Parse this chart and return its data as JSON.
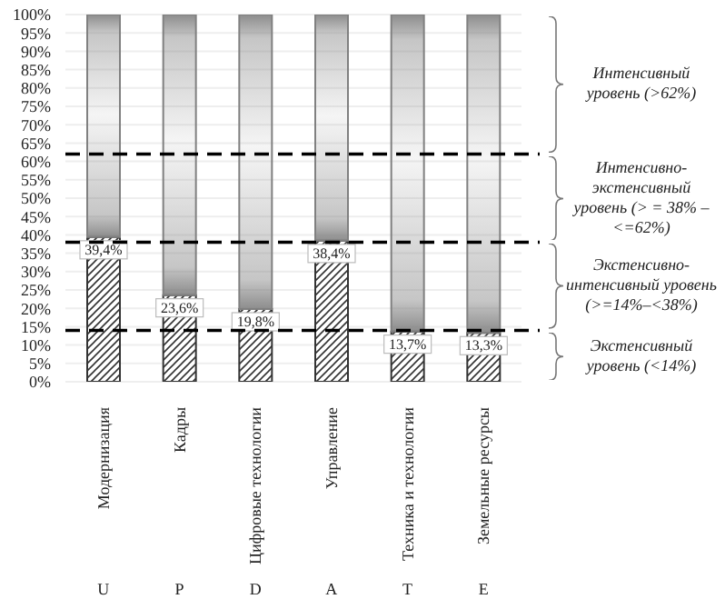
{
  "chart_data": {
    "type": "bar",
    "stacked": true,
    "categories": [
      "Модернизация",
      "Кадры",
      "Цифровые технологии",
      "Управление",
      "Техника и технологии",
      "Земельные ресурсы"
    ],
    "series": [
      {
        "color": "#333333",
        "values": [
          39.4,
          23.6,
          19.8,
          38.4,
          13.7,
          13.3
        ],
        "value_labels": [
          "39,4%",
          "23,6%",
          "19,8%",
          "38,4%",
          "13,7%",
          "13,3%"
        ]
      },
      {
        "color": "#808080",
        "values": [
          60.6,
          76.4,
          80.2,
          61.6,
          86.3,
          86.7
        ]
      }
    ],
    "ylim": [
      0,
      100
    ],
    "yticks": [
      {
        "value": 0,
        "label": "0%"
      },
      {
        "value": 5,
        "label": "5%"
      },
      {
        "value": 10,
        "label": "10%"
      },
      {
        "value": 15,
        "label": "15%"
      },
      {
        "value": 20,
        "label": "20%"
      },
      {
        "value": 25,
        "label": "25%"
      },
      {
        "value": 30,
        "label": "30%"
      },
      {
        "value": 35,
        "label": "35%"
      },
      {
        "value": 40,
        "label": "40%"
      },
      {
        "value": 45,
        "label": "45%"
      },
      {
        "value": 50,
        "label": "50%"
      },
      {
        "value": 55,
        "label": "55%"
      },
      {
        "value": 60,
        "label": "60%"
      },
      {
        "value": 65,
        "label": "65%"
      },
      {
        "value": 70,
        "label": "70%"
      },
      {
        "value": 75,
        "label": "75%"
      },
      {
        "value": 80,
        "label": "80%"
      },
      {
        "value": 85,
        "label": "85%"
      },
      {
        "value": 90,
        "label": "90%"
      },
      {
        "value": 95,
        "label": "95%"
      },
      {
        "value": 100,
        "label": "100%"
      }
    ],
    "grid": "y",
    "ref_lines": [
      {
        "axis": "y",
        "value": 62,
        "line_style": "dashed",
        "color": "#000000"
      },
      {
        "axis": "y",
        "value": 38,
        "line_style": "dashed",
        "color": "#000000"
      },
      {
        "axis": "y",
        "value": 14,
        "line_style": "dashed",
        "color": "#000000"
      }
    ],
    "annotations": [
      "U",
      "P",
      "D",
      "A",
      "T",
      "E",
      "Интенсивный уровень (>62%)",
      "Интенсивно-экстенсивный уровень (> = 38% –<=62%)",
      "Экстенсивно-интенсивный уровень (>=14%–<38%)",
      "Экстенсивный уровень (<14%)"
    ]
  }
}
